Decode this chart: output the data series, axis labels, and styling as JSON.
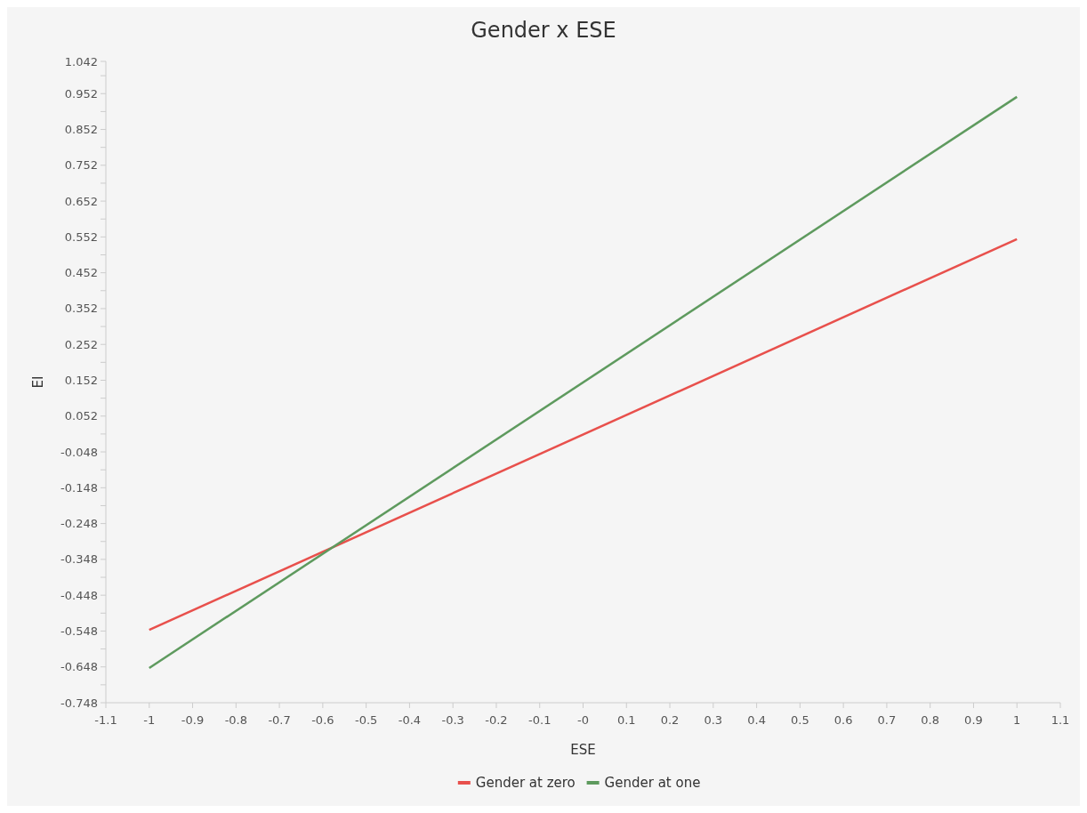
{
  "chart_data": {
    "type": "line",
    "title": "Gender x ESE",
    "xlabel": "ESE",
    "ylabel": "EI",
    "x": [
      -1,
      1
    ],
    "series": [
      {
        "name": "Gender at zero",
        "color": "#e8504c",
        "values": [
          -0.545,
          0.546
        ]
      },
      {
        "name": "Gender at one",
        "color": "#5e9a5e",
        "values": [
          -0.651,
          0.943
        ]
      }
    ],
    "xlim": [
      -1.1,
      1.1
    ],
    "xticks": [
      -1.1,
      -1,
      -0.9,
      -0.8,
      -0.7,
      -0.6,
      -0.5,
      -0.4,
      -0.3,
      -0.2,
      -0.1,
      {
        "value": 0,
        "label": "-0"
      },
      0.1,
      0.2,
      0.3,
      0.4,
      0.5,
      0.6,
      0.7,
      0.8,
      0.9,
      1,
      1.1
    ],
    "ylim": [
      -0.748,
      1.042
    ],
    "yticks": [
      -0.748,
      {
        "value": -0.698,
        "label": null
      },
      -0.648,
      {
        "value": -0.598,
        "label": null
      },
      -0.548,
      {
        "value": -0.498,
        "label": null
      },
      -0.448,
      {
        "value": -0.398,
        "label": null
      },
      -0.348,
      {
        "value": -0.298,
        "label": null
      },
      -0.248,
      {
        "value": -0.198,
        "label": null
      },
      -0.148,
      {
        "value": -0.098,
        "label": null
      },
      -0.048,
      {
        "value": 0.002,
        "label": null
      },
      0.052,
      {
        "value": 0.102,
        "label": null
      },
      0.152,
      {
        "value": 0.202,
        "label": null
      },
      0.252,
      {
        "value": 0.302,
        "label": null
      },
      0.352,
      {
        "value": 0.402,
        "label": null
      },
      0.452,
      {
        "value": 0.502,
        "label": null
      },
      0.552,
      {
        "value": 0.602,
        "label": null
      },
      0.652,
      {
        "value": 0.702,
        "label": null
      },
      0.752,
      {
        "value": 0.802,
        "label": null
      },
      0.852,
      {
        "value": 0.902,
        "label": null
      },
      0.952,
      {
        "value": 1.002,
        "label": null
      },
      1.042
    ],
    "grid": false,
    "legend": "bottom",
    "marker": "none",
    "line_style": "solid"
  }
}
